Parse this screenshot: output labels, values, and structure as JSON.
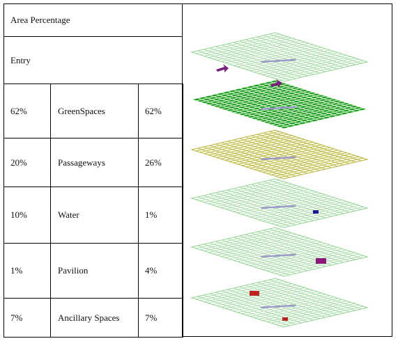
{
  "table": {
    "header": "Area Percentage",
    "entry": "Entry",
    "rows": [
      [
        "62%",
        "GreenSpaces",
        "62%"
      ],
      [
        "20%",
        "Passageways",
        "26%"
      ],
      [
        "10%",
        "Water",
        "1%"
      ],
      [
        "1%",
        "Pavilion",
        "4%"
      ],
      [
        "7%",
        "Ancillary Spaces",
        "7%"
      ]
    ]
  }
}
